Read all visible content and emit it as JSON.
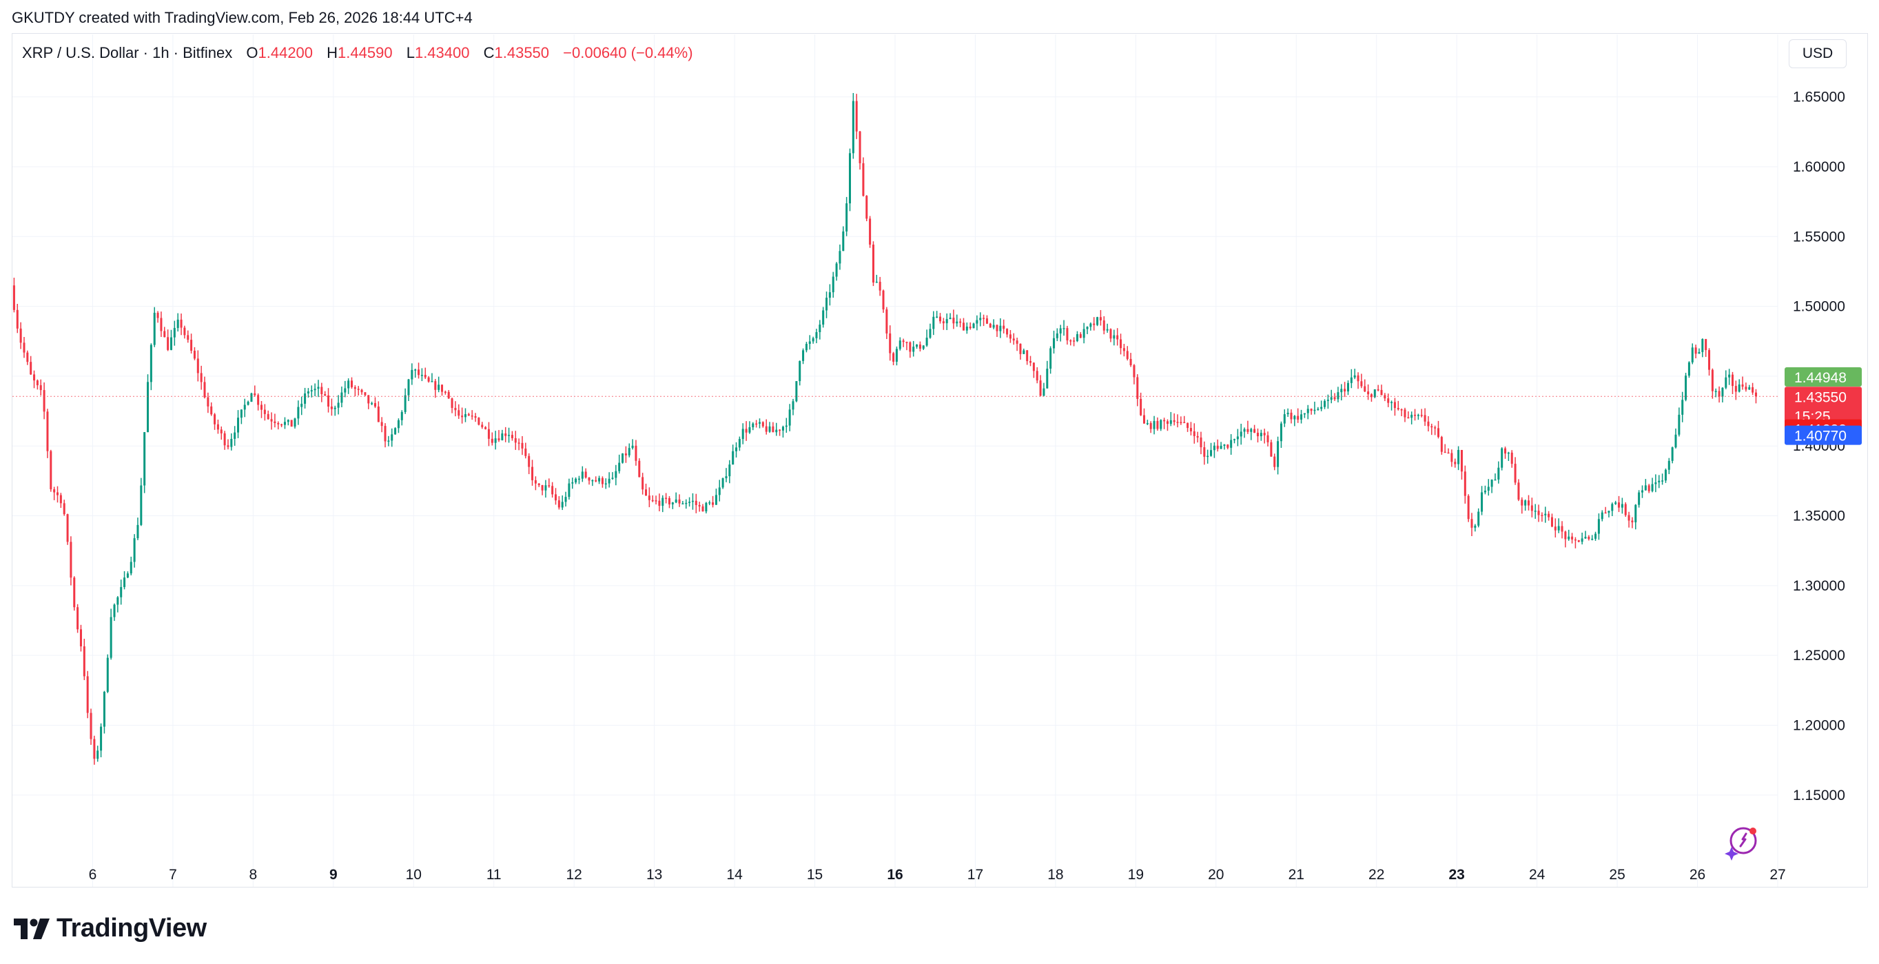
{
  "attribution": "GKUTDY created with TradingView.com, Feb 26, 2026 18:44 UTC+4",
  "legend": {
    "symbol": "XRP / U.S. Dollar · 1h · Bitfinex",
    "o_label": "O",
    "o_value": "1.44200",
    "h_label": "H",
    "h_value": "1.44590",
    "l_label": "L",
    "l_value": "1.43400",
    "c_label": "C",
    "c_value": "1.43550",
    "change": "−0.00640 (−0.44%)"
  },
  "currency_button": "USD",
  "logo_text": "TradingView",
  "colors": {
    "up": "#089981",
    "down": "#f23645",
    "grid": "#f0f3fa",
    "axis_text": "#131722"
  },
  "chart_data": {
    "type": "candlestick",
    "timeframe": "1h",
    "ylim": [
      1.105,
      1.675
    ],
    "y_ticks": [
      1.15,
      1.2,
      1.25,
      1.3,
      1.35,
      1.4,
      1.45,
      1.5,
      1.55,
      1.6,
      1.65
    ],
    "y_tick_labels": [
      "1.15000",
      "1.20000",
      "1.25000",
      "1.30000",
      "1.35000",
      "1.40000",
      "1.45000",
      "1.50000",
      "1.55000",
      "1.60000",
      "1.65000"
    ],
    "x_ticks": [
      {
        "day": 6,
        "label": "6",
        "bold": false
      },
      {
        "day": 7,
        "label": "7",
        "bold": false
      },
      {
        "day": 8,
        "label": "8",
        "bold": false
      },
      {
        "day": 9,
        "label": "9",
        "bold": true
      },
      {
        "day": 10,
        "label": "10",
        "bold": false
      },
      {
        "day": 11,
        "label": "11",
        "bold": false
      },
      {
        "day": 12,
        "label": "12",
        "bold": false
      },
      {
        "day": 13,
        "label": "13",
        "bold": false
      },
      {
        "day": 14,
        "label": "14",
        "bold": false
      },
      {
        "day": 15,
        "label": "15",
        "bold": false
      },
      {
        "day": 16,
        "label": "16",
        "bold": true
      },
      {
        "day": 17,
        "label": "17",
        "bold": false
      },
      {
        "day": 18,
        "label": "18",
        "bold": false
      },
      {
        "day": 19,
        "label": "19",
        "bold": false
      },
      {
        "day": 20,
        "label": "20",
        "bold": false
      },
      {
        "day": 21,
        "label": "21",
        "bold": false
      },
      {
        "day": 22,
        "label": "22",
        "bold": false
      },
      {
        "day": 23,
        "label": "23",
        "bold": true
      },
      {
        "day": 24,
        "label": "24",
        "bold": false
      },
      {
        "day": 25,
        "label": "25",
        "bold": false
      },
      {
        "day": 26,
        "label": "26",
        "bold": false
      },
      {
        "day": 27,
        "label": "27",
        "bold": false
      }
    ],
    "x_range_days": [
      5.0,
      27.0
    ],
    "price_path": [
      [
        5.0,
        1.515
      ],
      [
        5.1,
        1.48
      ],
      [
        5.25,
        1.45
      ],
      [
        5.4,
        1.435
      ],
      [
        5.5,
        1.37
      ],
      [
        5.65,
        1.36
      ],
      [
        5.8,
        1.28
      ],
      [
        5.9,
        1.25
      ],
      [
        5.95,
        1.21
      ],
      [
        6.05,
        1.17
      ],
      [
        6.15,
        1.21
      ],
      [
        6.25,
        1.28
      ],
      [
        6.4,
        1.3
      ],
      [
        6.5,
        1.32
      ],
      [
        6.6,
        1.35
      ],
      [
        6.7,
        1.44
      ],
      [
        6.8,
        1.5
      ],
      [
        6.95,
        1.47
      ],
      [
        7.1,
        1.49
      ],
      [
        7.3,
        1.46
      ],
      [
        7.5,
        1.42
      ],
      [
        7.7,
        1.4
      ],
      [
        7.85,
        1.42
      ],
      [
        8.0,
        1.44
      ],
      [
        8.2,
        1.42
      ],
      [
        8.5,
        1.415
      ],
      [
        8.7,
        1.44
      ],
      [
        8.85,
        1.44
      ],
      [
        9.0,
        1.425
      ],
      [
        9.2,
        1.445
      ],
      [
        9.4,
        1.435
      ],
      [
        9.55,
        1.425
      ],
      [
        9.7,
        1.4
      ],
      [
        9.85,
        1.42
      ],
      [
        10.0,
        1.455
      ],
      [
        10.2,
        1.445
      ],
      [
        10.4,
        1.44
      ],
      [
        10.6,
        1.42
      ],
      [
        10.8,
        1.42
      ],
      [
        11.0,
        1.405
      ],
      [
        11.2,
        1.41
      ],
      [
        11.35,
        1.4
      ],
      [
        11.55,
        1.37
      ],
      [
        11.7,
        1.37
      ],
      [
        11.85,
        1.355
      ],
      [
        11.95,
        1.37
      ],
      [
        12.1,
        1.38
      ],
      [
        12.3,
        1.375
      ],
      [
        12.5,
        1.375
      ],
      [
        12.6,
        1.39
      ],
      [
        12.75,
        1.4
      ],
      [
        12.85,
        1.37
      ],
      [
        12.95,
        1.36
      ],
      [
        13.1,
        1.36
      ],
      [
        13.3,
        1.36
      ],
      [
        13.5,
        1.36
      ],
      [
        13.6,
        1.355
      ],
      [
        13.75,
        1.36
      ],
      [
        13.85,
        1.37
      ],
      [
        14.0,
        1.395
      ],
      [
        14.1,
        1.41
      ],
      [
        14.3,
        1.415
      ],
      [
        14.5,
        1.41
      ],
      [
        14.65,
        1.415
      ],
      [
        14.75,
        1.43
      ],
      [
        14.85,
        1.47
      ],
      [
        15.0,
        1.475
      ],
      [
        15.1,
        1.49
      ],
      [
        15.2,
        1.51
      ],
      [
        15.3,
        1.53
      ],
      [
        15.4,
        1.56
      ],
      [
        15.5,
        1.65
      ],
      [
        15.6,
        1.59
      ],
      [
        15.7,
        1.55
      ],
      [
        15.75,
        1.52
      ],
      [
        15.85,
        1.51
      ],
      [
        15.95,
        1.47
      ],
      [
        16.0,
        1.46
      ],
      [
        16.1,
        1.48
      ],
      [
        16.2,
        1.47
      ],
      [
        16.3,
        1.47
      ],
      [
        16.4,
        1.475
      ],
      [
        16.5,
        1.49
      ],
      [
        16.7,
        1.49
      ],
      [
        16.9,
        1.485
      ],
      [
        17.1,
        1.49
      ],
      [
        17.3,
        1.485
      ],
      [
        17.5,
        1.475
      ],
      [
        17.7,
        1.46
      ],
      [
        17.85,
        1.435
      ],
      [
        18.0,
        1.48
      ],
      [
        18.1,
        1.485
      ],
      [
        18.2,
        1.475
      ],
      [
        18.35,
        1.48
      ],
      [
        18.55,
        1.49
      ],
      [
        18.7,
        1.48
      ],
      [
        18.85,
        1.47
      ],
      [
        19.0,
        1.45
      ],
      [
        19.1,
        1.415
      ],
      [
        19.3,
        1.415
      ],
      [
        19.5,
        1.42
      ],
      [
        19.6,
        1.415
      ],
      [
        19.75,
        1.41
      ],
      [
        19.9,
        1.39
      ],
      [
        20.0,
        1.4
      ],
      [
        20.15,
        1.4
      ],
      [
        20.3,
        1.41
      ],
      [
        20.5,
        1.41
      ],
      [
        20.65,
        1.405
      ],
      [
        20.75,
        1.385
      ],
      [
        20.85,
        1.425
      ],
      [
        21.0,
        1.42
      ],
      [
        21.2,
        1.425
      ],
      [
        21.4,
        1.43
      ],
      [
        21.6,
        1.44
      ],
      [
        21.75,
        1.45
      ],
      [
        21.9,
        1.435
      ],
      [
        22.0,
        1.44
      ],
      [
        22.2,
        1.43
      ],
      [
        22.4,
        1.42
      ],
      [
        22.6,
        1.42
      ],
      [
        22.75,
        1.41
      ],
      [
        22.85,
        1.395
      ],
      [
        23.0,
        1.39
      ],
      [
        23.05,
        1.4
      ],
      [
        23.15,
        1.35
      ],
      [
        23.25,
        1.34
      ],
      [
        23.35,
        1.37
      ],
      [
        23.5,
        1.375
      ],
      [
        23.6,
        1.4
      ],
      [
        23.7,
        1.39
      ],
      [
        23.8,
        1.36
      ],
      [
        24.0,
        1.355
      ],
      [
        24.2,
        1.345
      ],
      [
        24.3,
        1.34
      ],
      [
        24.45,
        1.33
      ],
      [
        24.6,
        1.335
      ],
      [
        24.7,
        1.33
      ],
      [
        24.8,
        1.35
      ],
      [
        25.0,
        1.36
      ],
      [
        25.1,
        1.355
      ],
      [
        25.2,
        1.345
      ],
      [
        25.3,
        1.37
      ],
      [
        25.45,
        1.37
      ],
      [
        25.6,
        1.375
      ],
      [
        25.75,
        1.41
      ],
      [
        25.85,
        1.44
      ],
      [
        25.95,
        1.47
      ],
      [
        26.05,
        1.465
      ],
      [
        26.1,
        1.48
      ],
      [
        26.2,
        1.44
      ],
      [
        26.3,
        1.435
      ],
      [
        26.4,
        1.45
      ],
      [
        26.5,
        1.44
      ],
      [
        26.6,
        1.445
      ],
      [
        26.75,
        1.4355
      ]
    ],
    "price_labels": [
      {
        "value": 1.44948,
        "label": "1.44948",
        "color": "#68b85e"
      },
      {
        "value": 1.4355,
        "label": "1.43550",
        "countdown": "15:25",
        "color": "#f23645"
      },
      {
        "value": 1.41223,
        "label": "1.41223",
        "color": "#f21b1b"
      },
      {
        "value": 1.4077,
        "label": "1.40770",
        "color": "#2962ff"
      }
    ],
    "last_price_line": 1.4355
  }
}
